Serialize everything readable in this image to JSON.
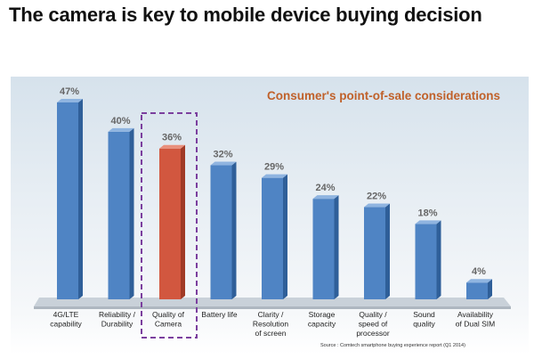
{
  "title": "The camera is key to mobile device buying decision",
  "colors": {
    "bar": "#4f84c4",
    "bar_side": "#2f5f99",
    "bar_top": "#8fb4e0",
    "highlight": "#d2573f",
    "highlight_side": "#a03a26",
    "highlight_top": "#e9907c",
    "subtitle": "#c0612a",
    "highlight_box": "#7b3f9e"
  },
  "chart_data": {
    "type": "bar",
    "title": "Consumer's point-of-sale considerations",
    "categories": [
      [
        "4G/LTE",
        "capability"
      ],
      [
        "Reliability /",
        "Durability"
      ],
      [
        "Quality of",
        "Camera"
      ],
      [
        "Battery life"
      ],
      [
        "Clarity /",
        "Resolution",
        "of screen"
      ],
      [
        "Storage",
        "capacity"
      ],
      [
        "Quality /",
        "speed of",
        "processor"
      ],
      [
        "Sound",
        "quality"
      ],
      [
        "Availability",
        "of Dual SIM"
      ]
    ],
    "values": [
      47,
      40,
      36,
      32,
      29,
      24,
      22,
      18,
      4
    ],
    "value_labels": [
      "47%",
      "40%",
      "36%",
      "32%",
      "29%",
      "24%",
      "22%",
      "18%",
      "4%"
    ],
    "highlighted_index": 2,
    "ylim": [
      0,
      47
    ],
    "grid": false,
    "source": "Source : Comtech smartphone buying experience report (Q1 2014)"
  }
}
